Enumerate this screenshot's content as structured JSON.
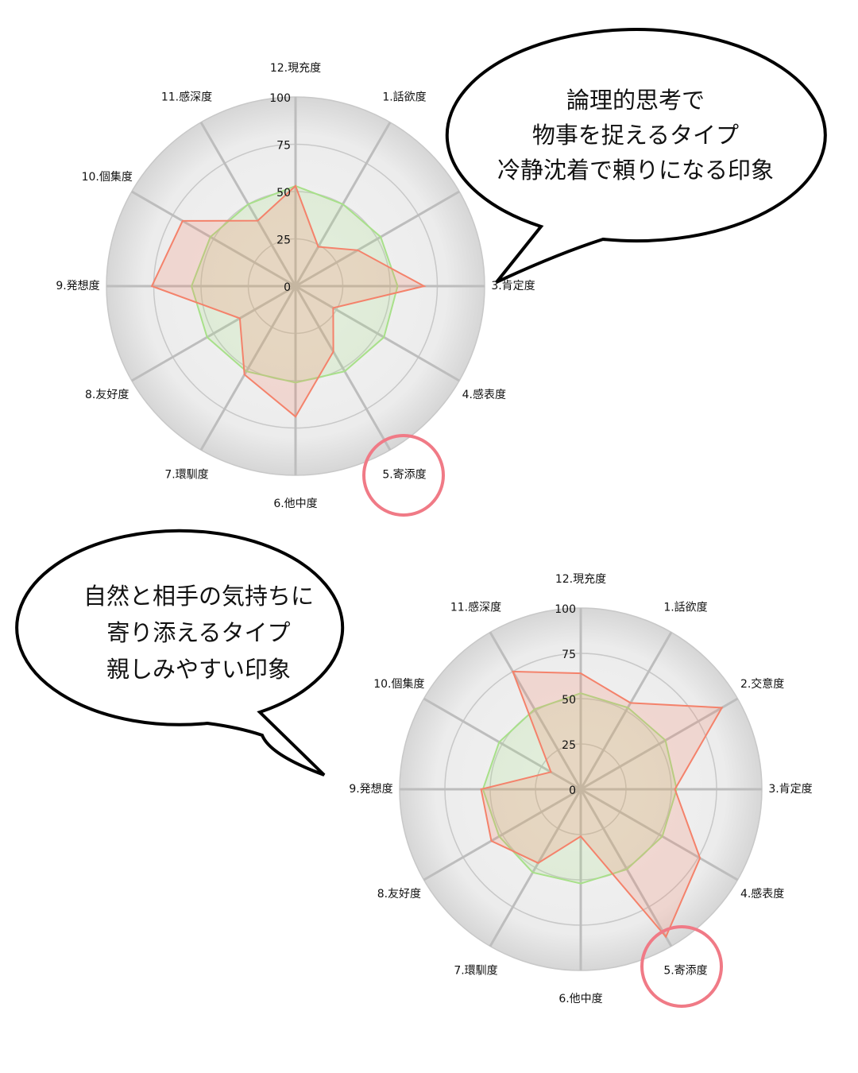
{
  "chart_data": [
    {
      "type": "radar",
      "annotation": [
        "論理的思考で",
        "物事を捉えるタイプ",
        "冷静沈着で頼りになる印象"
      ],
      "categories": [
        "1.話欲度",
        null,
        "3.肯定度",
        "4.感表度",
        "5.寄添度",
        "6.他中度",
        "7.環馴度",
        "8.友好度",
        "9.発想度",
        "10.個集度",
        "11.感深度",
        "12.現充度"
      ],
      "series": [
        {
          "color": "#a8e08a",
          "values": [
            50,
            52,
            54,
            54,
            52,
            51,
            52,
            54,
            55,
            52,
            50,
            53
          ]
        },
        {
          "color": "#f4826b",
          "values": [
            24,
            38,
            68,
            23,
            40,
            69,
            54,
            34,
            76,
            69,
            40,
            53
          ]
        }
      ],
      "rlim": [
        0,
        100
      ],
      "rticks": [
        0,
        25,
        50,
        75,
        100
      ]
    },
    {
      "type": "radar",
      "annotation": [
        "自然と相手の気持ちに",
        "寄り添えるタイプ",
        "親しみやすい印象"
      ],
      "categories": [
        "1.話欲度",
        "2.交意度",
        "3.肯定度",
        "4.感表度",
        "5.寄添度",
        "6.他中度",
        "7.環馴度",
        "8.友好度",
        "9.発想度",
        "10.個集度",
        "11.感深度",
        "12.現充度"
      ],
      "series": [
        {
          "color": "#a8e08a",
          "values": [
            52,
            54,
            53,
            52,
            51,
            52,
            53,
            52,
            54,
            52,
            51,
            53
          ]
        },
        {
          "color": "#f4826b",
          "values": [
            55,
            90,
            52,
            76,
            94,
            26,
            47,
            57,
            55,
            19,
            75,
            64
          ]
        }
      ],
      "rlim": [
        0,
        100
      ],
      "rticks": [
        0,
        25,
        50,
        75,
        100
      ]
    }
  ]
}
